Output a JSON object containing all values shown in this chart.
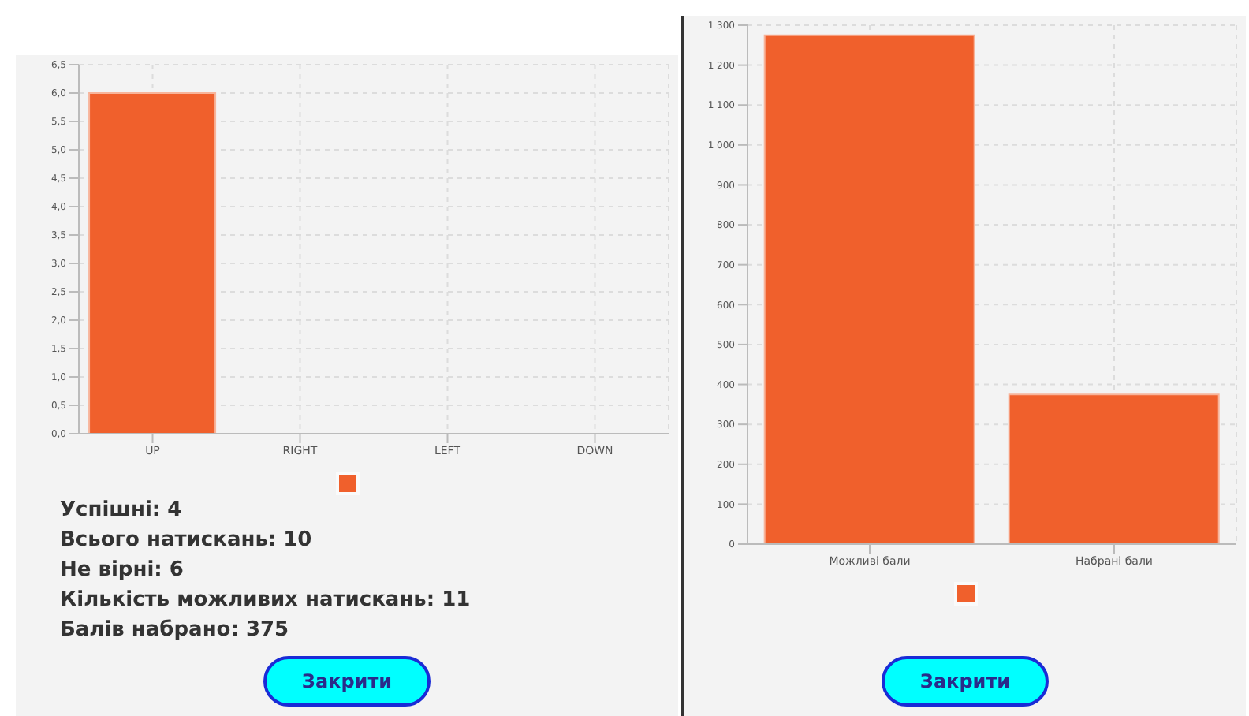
{
  "chart_data": [
    {
      "type": "bar",
      "categories": [
        "UP",
        "RIGHT",
        "LEFT",
        "DOWN"
      ],
      "values": [
        6,
        0,
        0,
        0
      ],
      "color": "#f0602c",
      "ylim": [
        0,
        6.5
      ],
      "yticks": [
        {
          "value": 0,
          "label": "0,0"
        },
        {
          "value": 0.5,
          "label": "0,5"
        },
        {
          "value": 1,
          "label": "1,0"
        },
        {
          "value": 1.5,
          "label": "1,5"
        },
        {
          "value": 2,
          "label": "2,0"
        },
        {
          "value": 2.5,
          "label": "2,5"
        },
        {
          "value": 3,
          "label": "3,0"
        },
        {
          "value": 3.5,
          "label": "3,5"
        },
        {
          "value": 4,
          "label": "4,0"
        },
        {
          "value": 4.5,
          "label": "4,5"
        },
        {
          "value": 5,
          "label": "5,0"
        },
        {
          "value": 5.5,
          "label": "5,5"
        },
        {
          "value": 6,
          "label": "6,0"
        },
        {
          "value": 6.5,
          "label": "6,5"
        }
      ],
      "grid": true,
      "annotations": [
        "Успішні: 4",
        "Всього натискань: 10",
        "Не вірні: 6",
        "Кількість можливих натискань: 11",
        "Балів набрано: 375",
        "Закрити"
      ]
    },
    {
      "type": "bar",
      "categories": [
        "Можливі бали",
        "Набрані бали"
      ],
      "values": [
        1275,
        375
      ],
      "color": "#f0602c",
      "ylim": [
        0,
        1300
      ],
      "yticks": [
        0,
        100,
        200,
        300,
        400,
        500,
        600,
        700,
        800,
        900,
        {
          "value": 1000,
          "label": "1 000"
        },
        {
          "value": 1100,
          "label": "1 100"
        },
        {
          "value": 1200,
          "label": "1 200"
        },
        {
          "value": 1300,
          "label": "1 300"
        }
      ],
      "grid": true,
      "annotations": [
        "Закрити"
      ]
    }
  ]
}
